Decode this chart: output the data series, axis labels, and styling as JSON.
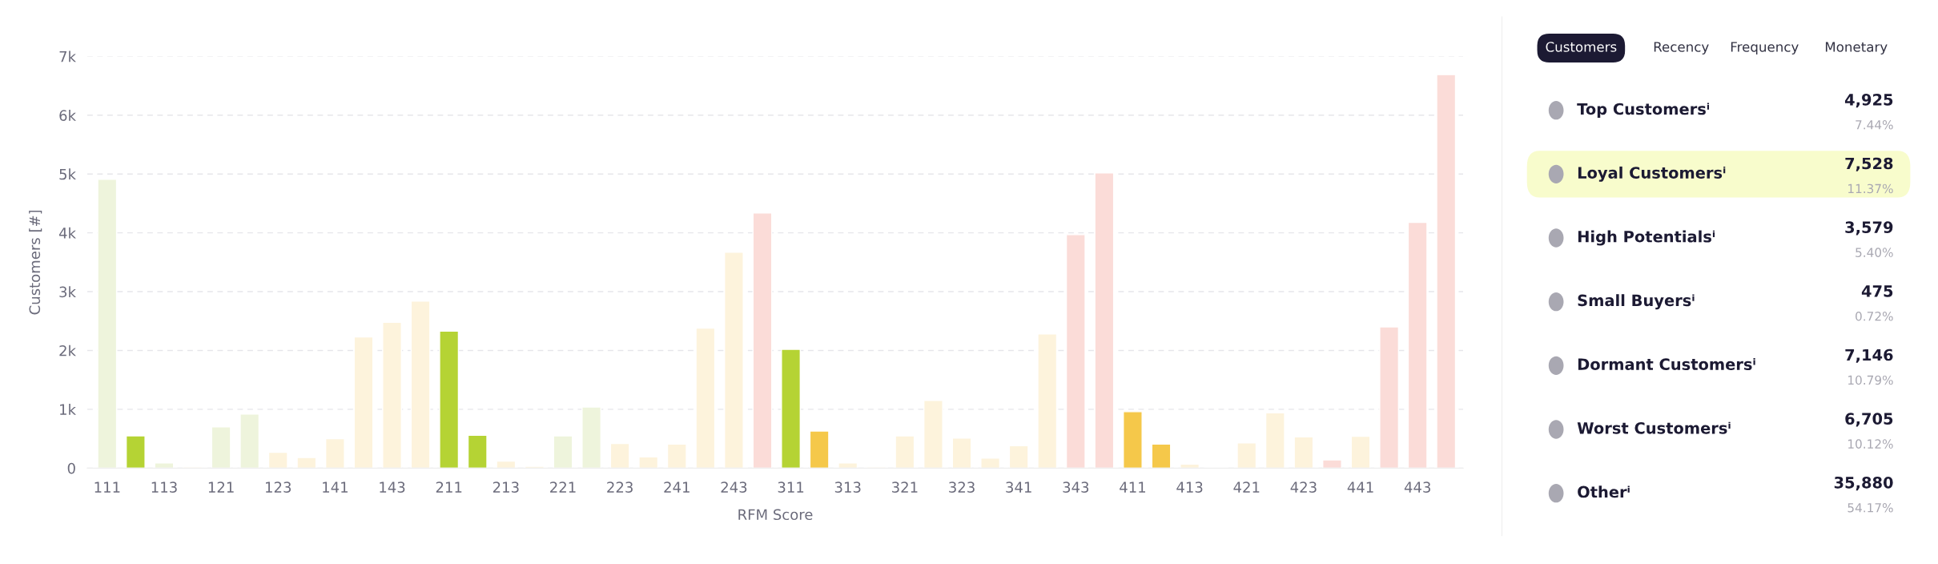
{
  "chart_data": [
    {
      "type": "bar",
      "xlabel": "RFM Score",
      "ylabel": "Customers [#]",
      "categories": [
        "111",
        null,
        "113",
        null,
        "121",
        null,
        "123",
        null,
        "141",
        null,
        "143",
        null,
        "211",
        null,
        "213",
        null,
        "221",
        null,
        "223",
        null,
        "241",
        null,
        "243",
        null,
        "311",
        null,
        "313",
        null,
        "321",
        null,
        "323",
        null,
        "341",
        null,
        "343",
        null,
        "411",
        null,
        "413",
        null,
        "421",
        null,
        "423",
        null,
        "441",
        null,
        "443",
        null
      ],
      "values": [
        4910,
        550,
        90,
        20,
        700,
        920,
        270,
        180,
        500,
        2230,
        2480,
        2840,
        2330,
        560,
        120,
        30,
        550,
        1040,
        420,
        190,
        410,
        2380,
        3670,
        4340,
        2020,
        630,
        90,
        20,
        550,
        1150,
        510,
        170,
        380,
        2280,
        3970,
        5020,
        960,
        410,
        70,
        10,
        430,
        940,
        530,
        140,
        540,
        2400,
        4180,
        6690
      ],
      "colors": [
        "#eef4dc",
        "#b5d334",
        "#eef4dc",
        "#fdf3dc",
        "#eef4dc",
        "#eef4dc",
        "#fdf3dc",
        "#fdf3dc",
        "#fdf3dc",
        "#fdf3dc",
        "#fdf3dc",
        "#fdf3dc",
        "#b5d334",
        "#b5d334",
        "#fdf3dc",
        "#fdf3dc",
        "#eef4dc",
        "#eef4dc",
        "#fdf3dc",
        "#fdf3dc",
        "#fdf3dc",
        "#fdf3dc",
        "#fdf3dc",
        "#fbdcd8",
        "#b5d334",
        "#f5c84a",
        "#fdf3dc",
        "#fdf3dc",
        "#fdf3dc",
        "#fdf3dc",
        "#fdf3dc",
        "#fdf3dc",
        "#fdf3dc",
        "#fdf3dc",
        "#fbdcd8",
        "#fbdcd8",
        "#f5c84a",
        "#f5c84a",
        "#fdf3dc",
        "#fdf3dc",
        "#fdf3dc",
        "#fdf3dc",
        "#fdf3dc",
        "#fbdcd8",
        "#fdf3dc",
        "#fbdcd8",
        "#fbdcd8",
        "#fbdcd8"
      ],
      "ylim": [
        0,
        7000
      ],
      "yticks": [
        0,
        {
          "value": 1000,
          "label": "1k"
        },
        {
          "value": 2000,
          "label": "2k"
        },
        {
          "value": 3000,
          "label": "3k"
        },
        {
          "value": 4000,
          "label": "4k"
        },
        {
          "value": 5000,
          "label": "5k"
        },
        {
          "value": 6000,
          "label": "6k"
        },
        {
          "value": 7000,
          "label": "7k"
        }
      ],
      "grid": "y",
      "legend": false
    },
    {
      "type": "other",
      "categories": [
        "Top Customersⁱ",
        "Loyal Customersⁱ",
        "High Potentialsⁱ",
        "Small Buyersⁱ",
        "Dormant Customersⁱ",
        "Worst Customersⁱ",
        "Otherⁱ"
      ],
      "value_labels": [
        "4,925",
        "7,528",
        "3,579",
        "475",
        "7,146",
        "6,705",
        "35,880"
      ],
      "colors": [
        "#ffffff",
        "#f8fccc",
        "#ffffff",
        "#ffffff",
        "#ffffff",
        "#ffffff",
        "#ffffff"
      ],
      "annotations": [
        "7.44%",
        "11.37%",
        "5.40%",
        "0.72%",
        "10.79%",
        "10.12%",
        "54.17%",
        "Customers",
        "Recency",
        "Frequency",
        "Monetary"
      ]
    }
  ]
}
